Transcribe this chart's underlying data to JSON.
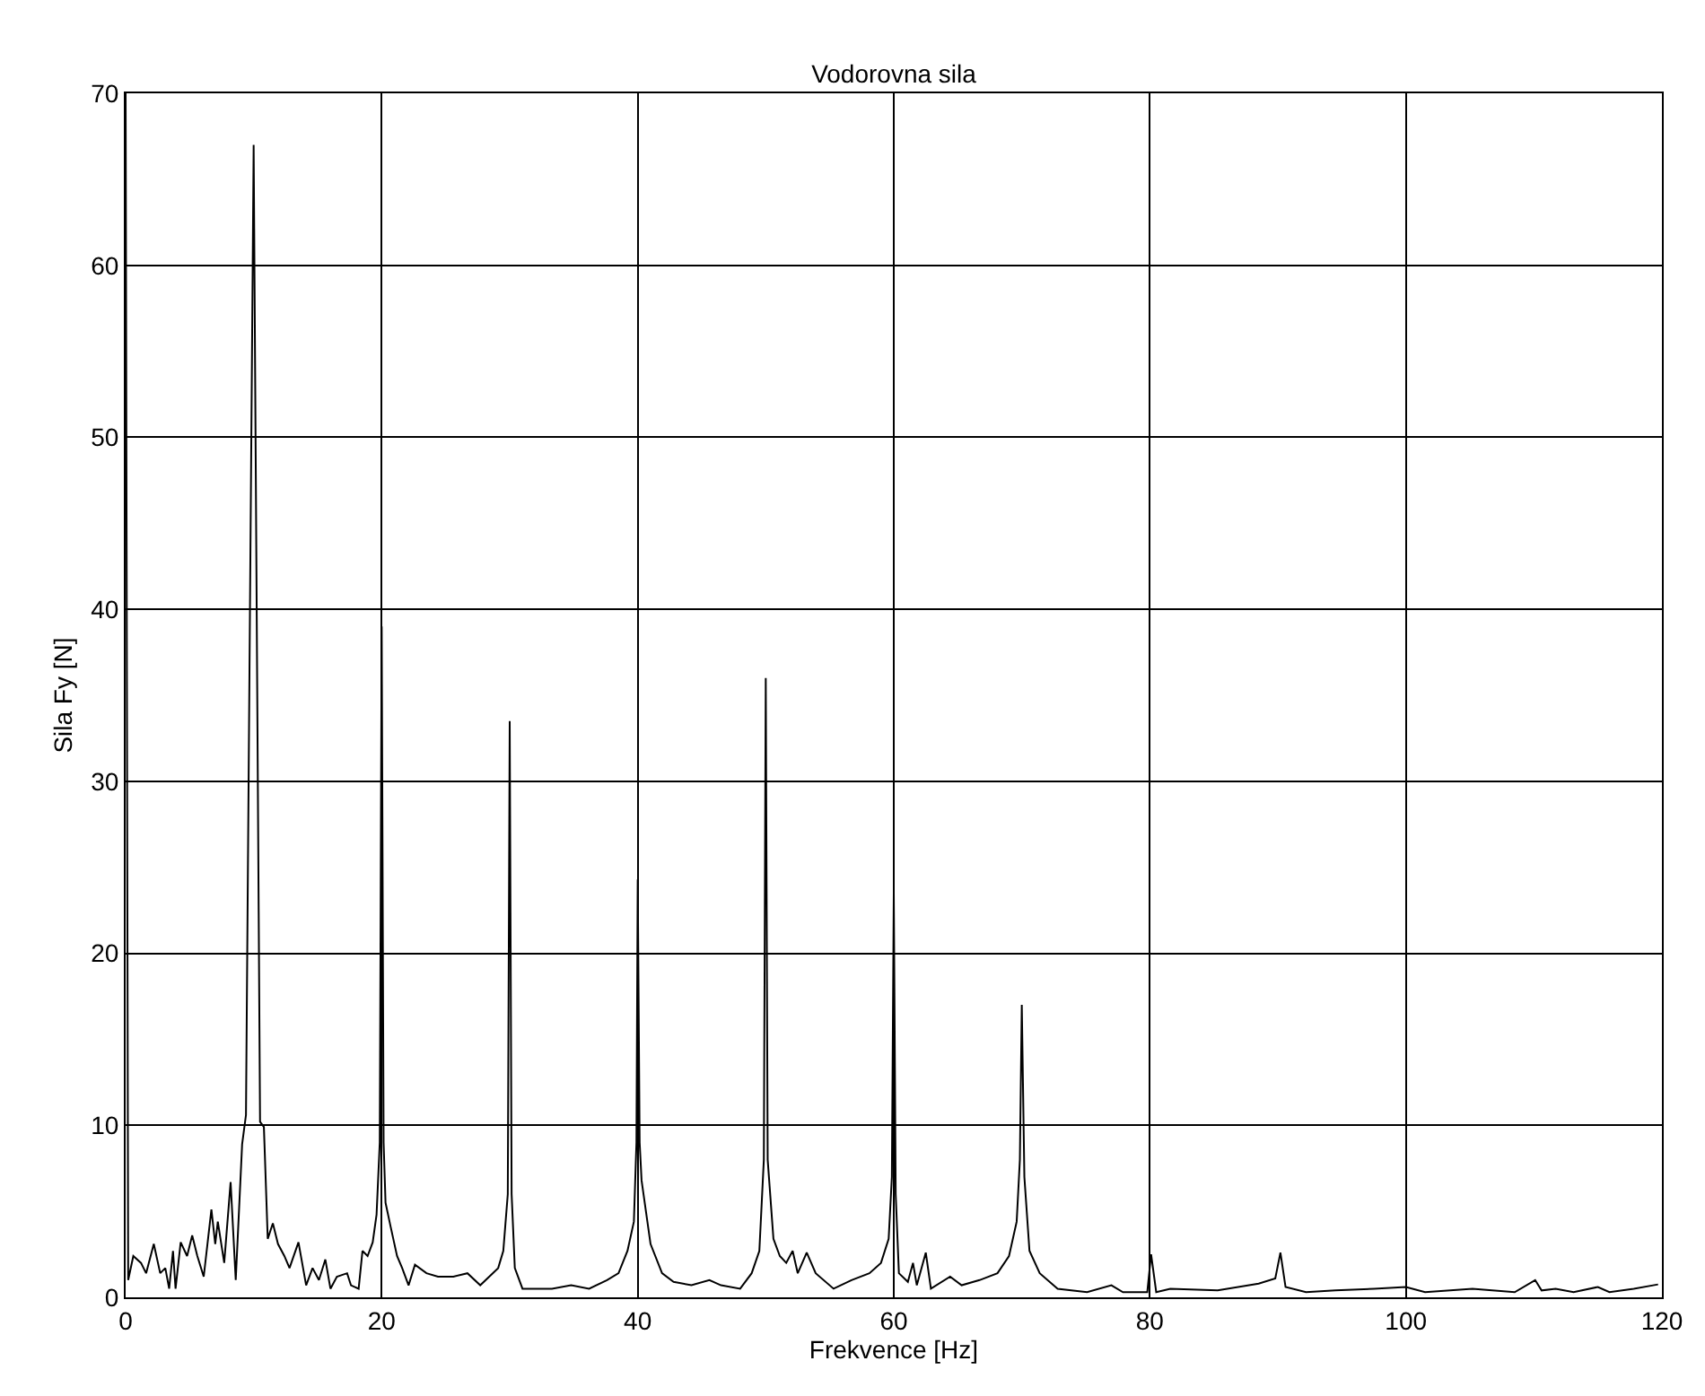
{
  "chart_data": {
    "type": "line",
    "title": "Vodorovna sila",
    "xlabel": "Frekvence [Hz]",
    "ylabel": "Sila Fy [N]",
    "xlim": [
      0,
      120
    ],
    "xticks": [
      0,
      20,
      40,
      60,
      80,
      100,
      120
    ],
    "ylim": [
      0,
      70
    ],
    "yticks": [
      0,
      10,
      20,
      30,
      40,
      50,
      60,
      70
    ],
    "grid": true,
    "line_style": "solid",
    "x": [
      0,
      0.2,
      0.6,
      1.2,
      1.6,
      2.2,
      2.7,
      3.1,
      3.4,
      3.7,
      3.9,
      4.3,
      4.8,
      5.2,
      5.6,
      6.1,
      6.7,
      7.0,
      7.2,
      7.7,
      8.2,
      8.6,
      9.1,
      9.4,
      10,
      10.5,
      10.8,
      11.1,
      11.5,
      11.9,
      12.4,
      12.8,
      13.5,
      14.1,
      14.6,
      15.1,
      15.6,
      16.0,
      16.5,
      17.3,
      17.6,
      18.2,
      18.5,
      18.9,
      19.3,
      19.6,
      19.85,
      20,
      20.15,
      20.3,
      20.7,
      21.2,
      21.6,
      22.1,
      22.6,
      23.5,
      24.4,
      25.6,
      26.7,
      27.7,
      29.1,
      29.5,
      29.85,
      30,
      30.15,
      30.4,
      31.0,
      32.0,
      33.3,
      34.8,
      36.2,
      37.6,
      38.5,
      39.2,
      39.7,
      39.9,
      40,
      40.15,
      40.3,
      41.0,
      41.9,
      42.8,
      44.2,
      45.6,
      46.5,
      48.0,
      48.9,
      49.5,
      49.85,
      50,
      50.15,
      50.6,
      51.1,
      51.6,
      52.1,
      52.5,
      53.2,
      53.9,
      55.3,
      56.7,
      58.1,
      59.0,
      59.6,
      59.85,
      60,
      60.15,
      60.4,
      61.1,
      61.5,
      61.8,
      62.5,
      62.9,
      64.4,
      65.3,
      66.7,
      68.1,
      69.0,
      69.6,
      69.85,
      70,
      70.2,
      70.6,
      71.4,
      72.8,
      75.1,
      77.0,
      77.9,
      79.8,
      80.1,
      80.5,
      81.6,
      85.3,
      88.5,
      89.8,
      90.2,
      90.6,
      92.2,
      94.5,
      97.5,
      100,
      101.5,
      105.2,
      108.5,
      110.1,
      110.6,
      111.7,
      113.1,
      115,
      115.9,
      117.8,
      119.7
    ],
    "series": [
      {
        "color": "#000000",
        "values": [
          70,
          1.0,
          2.4,
          2.0,
          1.4,
          3.1,
          1.4,
          1.7,
          0.5,
          2.7,
          0.5,
          3.2,
          2.4,
          3.6,
          2.4,
          1.2,
          5.1,
          3.1,
          4.4,
          2.0,
          6.7,
          1.0,
          8.9,
          10.6,
          67,
          10.2,
          9.9,
          3.4,
          4.3,
          3.1,
          2.4,
          1.7,
          3.2,
          0.7,
          1.7,
          1.0,
          2.2,
          0.5,
          1.2,
          1.4,
          0.7,
          0.5,
          2.7,
          2.4,
          3.2,
          4.8,
          9,
          39,
          9,
          5.5,
          4.1,
          2.4,
          1.7,
          0.7,
          1.9,
          1.4,
          1.2,
          1.2,
          1.4,
          0.7,
          1.7,
          2.7,
          6,
          33.5,
          6,
          1.7,
          0.5,
          0.5,
          0.5,
          0.7,
          0.5,
          1.0,
          1.4,
          2.7,
          4.4,
          9,
          24.3,
          9,
          6.8,
          3.1,
          1.4,
          0.9,
          0.7,
          1.0,
          0.7,
          0.5,
          1.4,
          2.7,
          8,
          36,
          8,
          3.4,
          2.4,
          2.0,
          2.7,
          1.4,
          2.6,
          1.4,
          0.5,
          1.0,
          1.4,
          2.0,
          3.4,
          7,
          23.5,
          6,
          1.4,
          0.9,
          2.0,
          0.7,
          2.6,
          0.5,
          1.2,
          0.7,
          1.0,
          1.4,
          2.4,
          4.4,
          8,
          17,
          7,
          2.7,
          1.4,
          0.5,
          0.3,
          0.7,
          0.3,
          0.3,
          2.5,
          0.3,
          0.5,
          0.4,
          0.8,
          1.1,
          2.6,
          0.6,
          0.3,
          0.4,
          0.5,
          0.6,
          0.3,
          0.5,
          0.3,
          1.0,
          0.4,
          0.5,
          0.3,
          0.6,
          0.3,
          0.5,
          0.75
        ]
      }
    ]
  }
}
